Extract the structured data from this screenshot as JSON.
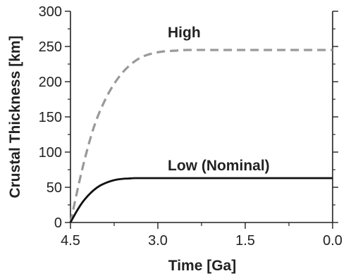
{
  "chart_data": {
    "type": "line",
    "title": "",
    "xlabel": "Time [Ga]",
    "ylabel": "Crustal Thickness [km]",
    "xlim": [
      4.5,
      0.0
    ],
    "ylim": [
      0,
      300
    ],
    "x_reversed": true,
    "x_ticks": [
      4.5,
      3.0,
      1.5,
      0.0
    ],
    "x_tick_labels": [
      "4.5",
      "3.0",
      "1.5",
      "0.0"
    ],
    "y_ticks": [
      0,
      50,
      100,
      150,
      200,
      250,
      300
    ],
    "y_tick_labels": [
      "0",
      "50",
      "100",
      "150",
      "200",
      "250",
      "300"
    ],
    "grid": false,
    "series": [
      {
        "name": "High",
        "color": "#999999",
        "style": "dashed",
        "x": [
          4.5,
          4.3,
          4.1,
          3.9,
          3.7,
          3.5,
          3.3,
          3.1,
          2.9,
          2.7,
          2.5,
          2.0,
          1.5,
          1.0,
          0.5,
          0.0
        ],
        "y": [
          0,
          75,
          135,
          175,
          203,
          222,
          234,
          240,
          243,
          244,
          245,
          245,
          245,
          245,
          245,
          245
        ]
      },
      {
        "name": "Low (Nominal)",
        "color": "#111111",
        "style": "solid",
        "x": [
          4.5,
          4.4,
          4.3,
          4.2,
          4.1,
          4.0,
          3.9,
          3.8,
          3.7,
          3.6,
          3.5,
          3.4,
          3.3,
          3.2,
          3.0,
          2.5,
          2.0,
          1.5,
          1.0,
          0.5,
          0.0
        ],
        "y": [
          0,
          15,
          28,
          38,
          46,
          52,
          56,
          59,
          61,
          62,
          62.5,
          63,
          63,
          63,
          63,
          63,
          63,
          63,
          63,
          63,
          63
        ]
      }
    ],
    "annotations": [
      {
        "text": "High",
        "series": "High"
      },
      {
        "text": "Low (Nominal)",
        "series": "Low (Nominal)"
      }
    ]
  }
}
